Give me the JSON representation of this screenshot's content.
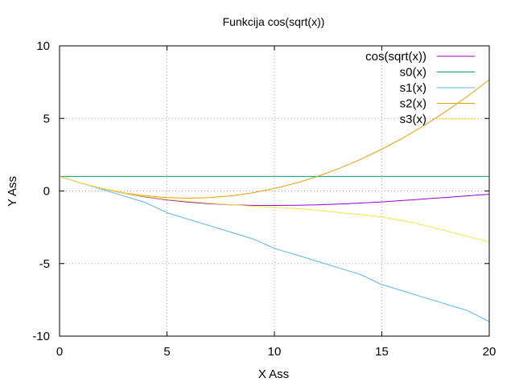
{
  "chart_data": {
    "type": "line",
    "title": "Funkcija cos(sqrt(x))",
    "xlabel": "X Ass",
    "ylabel": "Y Ass",
    "xlim": [
      0,
      20
    ],
    "ylim": [
      -10,
      10
    ],
    "xticks": [
      0,
      5,
      10,
      15,
      20
    ],
    "yticks": [
      -10,
      -5,
      0,
      5,
      10
    ],
    "grid": true,
    "legend_position": "top-right",
    "x": [
      0,
      1,
      2,
      3,
      4,
      5,
      6,
      7,
      8,
      9,
      10,
      11,
      12,
      13,
      14,
      15,
      16,
      17,
      18,
      19,
      20
    ],
    "series": [
      {
        "name": "cos(sqrt(x))",
        "color": "#9400d3",
        "values": [
          1.0,
          0.54,
          0.156,
          -0.161,
          -0.416,
          -0.617,
          -0.77,
          -0.879,
          -0.951,
          -0.99,
          -1.0,
          -0.986,
          -0.951,
          -0.899,
          -0.833,
          -0.756,
          -0.654,
          -0.55,
          -0.441,
          -0.334,
          -0.223
        ]
      },
      {
        "name": "s0(x)",
        "color": "#009e73",
        "values": [
          1,
          1,
          1,
          1,
          1,
          1,
          1,
          1,
          1,
          1,
          1,
          1,
          1,
          1,
          1,
          1,
          1,
          1,
          1,
          1,
          1
        ]
      },
      {
        "name": "s1(x)",
        "color": "#56b4e9",
        "values": [
          1.0,
          0.55,
          0.1,
          -0.35,
          -0.8,
          -1.5,
          -1.95,
          -2.4,
          -2.85,
          -3.3,
          -3.95,
          -4.4,
          -4.85,
          -5.3,
          -5.75,
          -6.45,
          -6.9,
          -7.35,
          -7.8,
          -8.25,
          -9.0
        ]
      },
      {
        "name": "s2(x)",
        "color": "#e69f00",
        "values": [
          1.0,
          0.54,
          0.17,
          -0.12,
          -0.33,
          -0.46,
          -0.5,
          -0.46,
          -0.33,
          -0.12,
          0.17,
          0.54,
          1.0,
          1.54,
          2.17,
          2.88,
          3.67,
          4.54,
          5.5,
          6.54,
          7.67
        ]
      },
      {
        "name": "s3(x)",
        "color": "#f0e442",
        "values": [
          1.0,
          0.54,
          0.16,
          -0.15,
          -0.39,
          -0.58,
          -0.72,
          -0.84,
          -0.95,
          -1.05,
          -1.13,
          -1.21,
          -1.33,
          -1.48,
          -1.63,
          -1.79,
          -2.05,
          -2.37,
          -2.75,
          -3.14,
          -3.5
        ]
      }
    ]
  }
}
